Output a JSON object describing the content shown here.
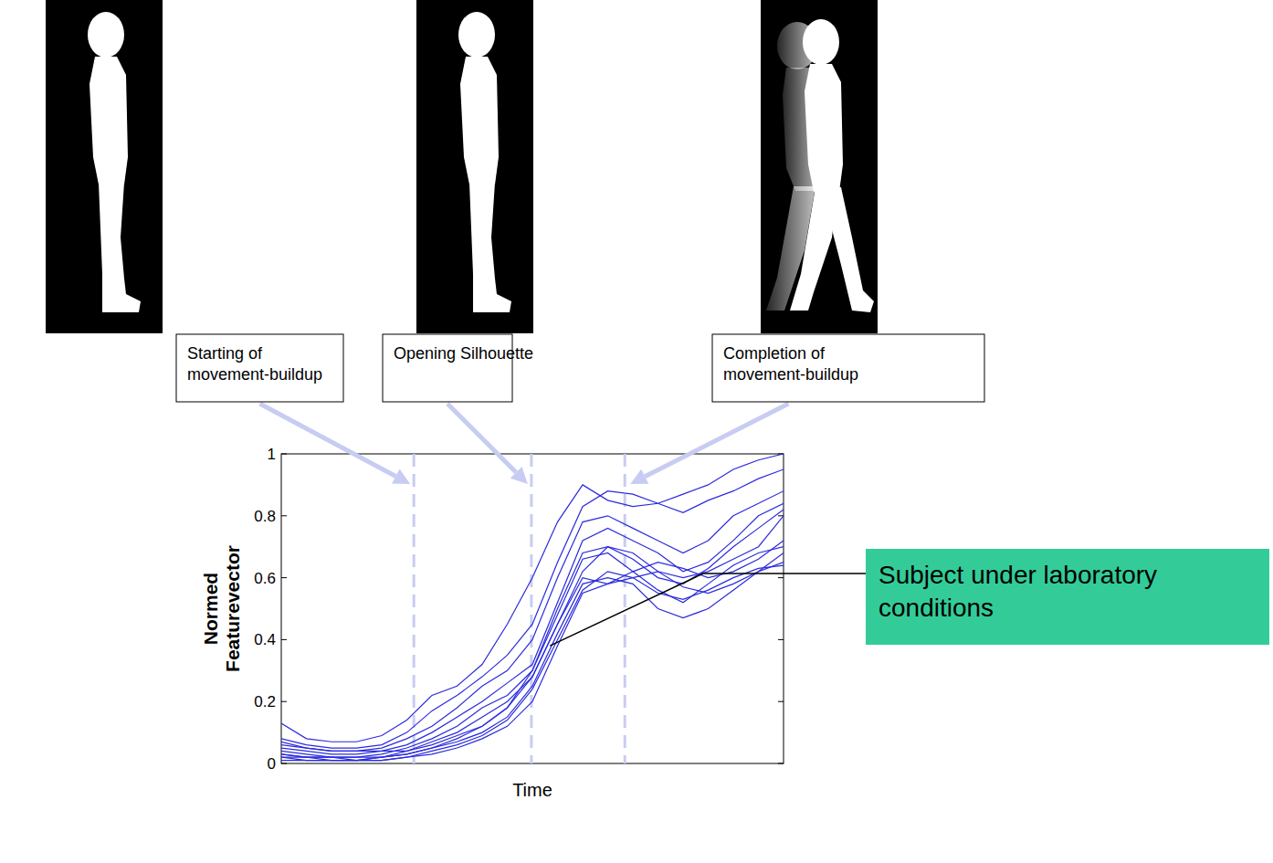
{
  "chart_data": {
    "type": "line",
    "y_label": "Normed Featurevector",
    "x_label": "Time",
    "xlim": [
      0,
      100
    ],
    "xticks": [],
    "ylim": [
      0,
      1
    ],
    "yticks": [
      0,
      0.2,
      0.4,
      0.6,
      0.8,
      1
    ],
    "tick_labels": "y",
    "color": "#2b2bdd",
    "x": [
      0,
      5,
      10,
      15,
      20,
      25,
      30,
      35,
      40,
      45,
      50,
      55,
      60,
      65,
      70,
      75,
      80,
      85,
      90,
      95,
      100
    ],
    "series": [
      {
        "values": [
          0.13,
          0.08,
          0.07,
          0.07,
          0.09,
          0.14,
          0.22,
          0.25,
          0.32,
          0.45,
          0.6,
          0.78,
          0.9,
          0.85,
          0.83,
          0.84,
          0.87,
          0.9,
          0.95,
          0.98,
          1.0
        ]
      },
      {
        "values": [
          0.08,
          0.06,
          0.05,
          0.05,
          0.06,
          0.1,
          0.17,
          0.22,
          0.28,
          0.35,
          0.45,
          0.65,
          0.83,
          0.88,
          0.87,
          0.84,
          0.81,
          0.85,
          0.88,
          0.92,
          0.95
        ]
      },
      {
        "values": [
          0.06,
          0.05,
          0.04,
          0.04,
          0.05,
          0.08,
          0.12,
          0.18,
          0.25,
          0.3,
          0.4,
          0.6,
          0.78,
          0.8,
          0.76,
          0.72,
          0.68,
          0.72,
          0.8,
          0.84,
          0.88
        ]
      },
      {
        "values": [
          0.05,
          0.04,
          0.03,
          0.03,
          0.04,
          0.06,
          0.1,
          0.15,
          0.2,
          0.26,
          0.32,
          0.52,
          0.72,
          0.76,
          0.72,
          0.68,
          0.62,
          0.65,
          0.72,
          0.8,
          0.84
        ]
      },
      {
        "values": [
          0.04,
          0.03,
          0.02,
          0.02,
          0.03,
          0.05,
          0.08,
          0.12,
          0.18,
          0.22,
          0.3,
          0.5,
          0.68,
          0.7,
          0.66,
          0.6,
          0.58,
          0.63,
          0.7,
          0.76,
          0.82
        ]
      },
      {
        "values": [
          0.03,
          0.02,
          0.02,
          0.02,
          0.02,
          0.04,
          0.07,
          0.1,
          0.15,
          0.2,
          0.28,
          0.45,
          0.62,
          0.7,
          0.68,
          0.62,
          0.6,
          0.62,
          0.66,
          0.7,
          0.8
        ]
      },
      {
        "values": [
          0.02,
          0.02,
          0.01,
          0.01,
          0.02,
          0.03,
          0.05,
          0.08,
          0.12,
          0.18,
          0.3,
          0.48,
          0.66,
          0.68,
          0.62,
          0.56,
          0.52,
          0.58,
          0.64,
          0.68,
          0.7
        ]
      },
      {
        "values": [
          0.02,
          0.01,
          0.01,
          0.01,
          0.02,
          0.03,
          0.05,
          0.07,
          0.1,
          0.15,
          0.25,
          0.42,
          0.58,
          0.6,
          0.58,
          0.5,
          0.47,
          0.5,
          0.56,
          0.62,
          0.68
        ]
      },
      {
        "values": [
          0.07,
          0.05,
          0.04,
          0.04,
          0.04,
          0.04,
          0.06,
          0.09,
          0.12,
          0.18,
          0.28,
          0.45,
          0.6,
          0.58,
          0.6,
          0.62,
          0.57,
          0.55,
          0.58,
          0.62,
          0.65
        ]
      },
      {
        "values": [
          0.03,
          0.02,
          0.02,
          0.01,
          0.01,
          0.02,
          0.04,
          0.06,
          0.09,
          0.14,
          0.24,
          0.4,
          0.56,
          0.62,
          0.6,
          0.55,
          0.53,
          0.56,
          0.6,
          0.63,
          0.64
        ]
      },
      {
        "values": [
          0.01,
          0.01,
          0.01,
          0.01,
          0.01,
          0.02,
          0.03,
          0.05,
          0.08,
          0.12,
          0.2,
          0.38,
          0.55,
          0.58,
          0.62,
          0.65,
          0.63,
          0.6,
          0.62,
          0.66,
          0.72
        ]
      }
    ],
    "markers": [
      {
        "x": 26.4,
        "label": "Starting of movement-buildup",
        "line_style": "dashed"
      },
      {
        "x": 49.8,
        "label": "Opening Silhouette",
        "line_style": "dashed"
      },
      {
        "x": 68.4,
        "label": "Completion of movement-buildup",
        "line_style": "dashed"
      }
    ],
    "annotation": {
      "text": "Subject under laboratory conditions",
      "points_to": [
        53.5,
        0.38
      ],
      "color": "#33cc99"
    }
  }
}
